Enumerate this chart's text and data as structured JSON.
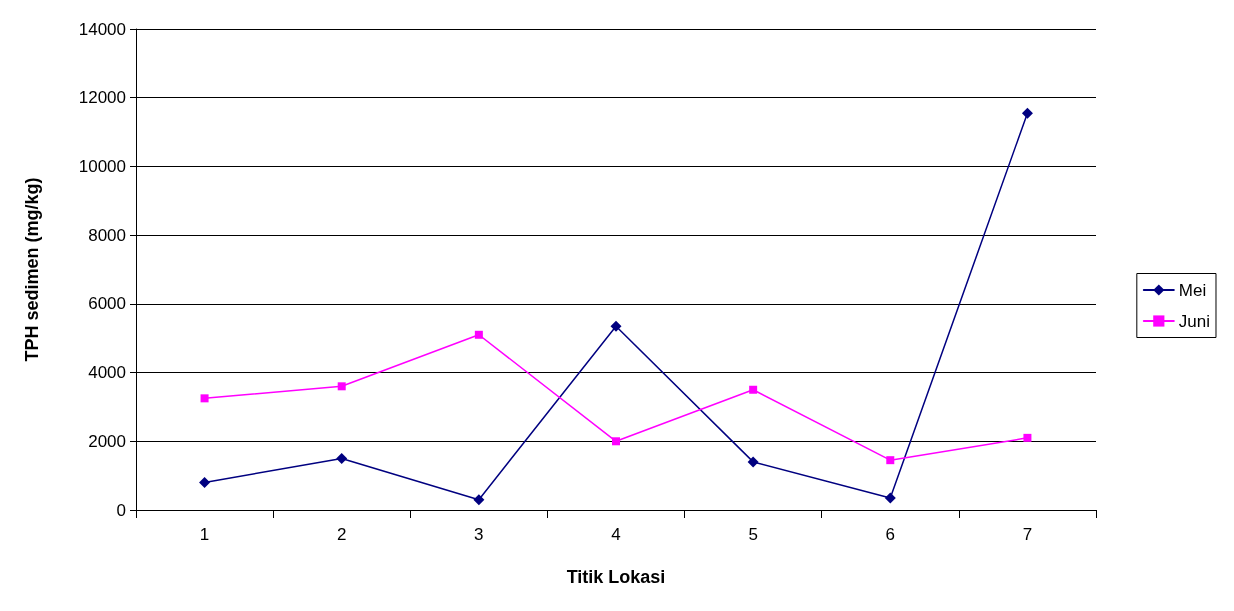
{
  "chart_data": {
    "type": "line",
    "xlabel": "Titik Lokasi",
    "ylabel": "TPH sedimen (mg/kg)",
    "categories": [
      "1",
      "2",
      "3",
      "4",
      "5",
      "6",
      "7"
    ],
    "series": [
      {
        "name": "Mei",
        "color": "#000080",
        "marker": "diamond",
        "values": [
          800,
          1500,
          300,
          5350,
          1400,
          350,
          11550
        ]
      },
      {
        "name": "Juni",
        "color": "#ff00ff",
        "marker": "square",
        "values": [
          3250,
          3600,
          5100,
          2000,
          3500,
          1450,
          2100
        ]
      }
    ],
    "ylim": [
      0,
      14000
    ],
    "yticks": [
      0,
      2000,
      4000,
      6000,
      8000,
      10000,
      12000,
      14000
    ],
    "grid": "y",
    "legend": "right",
    "line_style": "solid"
  }
}
